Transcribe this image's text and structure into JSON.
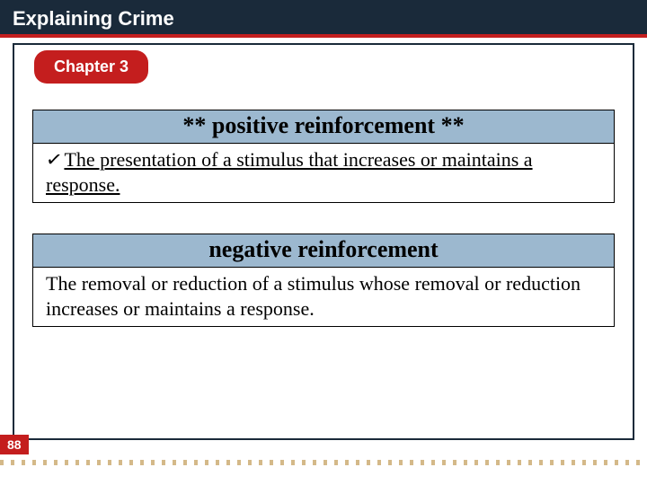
{
  "header": {
    "title": "Explaining Crime"
  },
  "chapter": {
    "label": "Chapter 3"
  },
  "definitions": [
    {
      "title": "** positive reinforcement **",
      "body": "The presentation of a stimulus that increases or maintains a response.",
      "checked": true,
      "underlined": true
    },
    {
      "title": "negative reinforcement",
      "body": "The removal or reduction of a stimulus whose removal or reduction increases or maintains a response.",
      "checked": false,
      "underlined": false
    }
  ],
  "page_number": "88",
  "colors": {
    "header_bg": "#1a2a3a",
    "accent_red": "#c41e1e",
    "title_band": "#9cb8cf",
    "footer_gold": "#b88a3a"
  },
  "typography": {
    "header_family": "Arial",
    "body_family": "Times New Roman",
    "header_size_pt": 17,
    "def_title_size_pt": 20,
    "def_body_size_pt": 17
  }
}
